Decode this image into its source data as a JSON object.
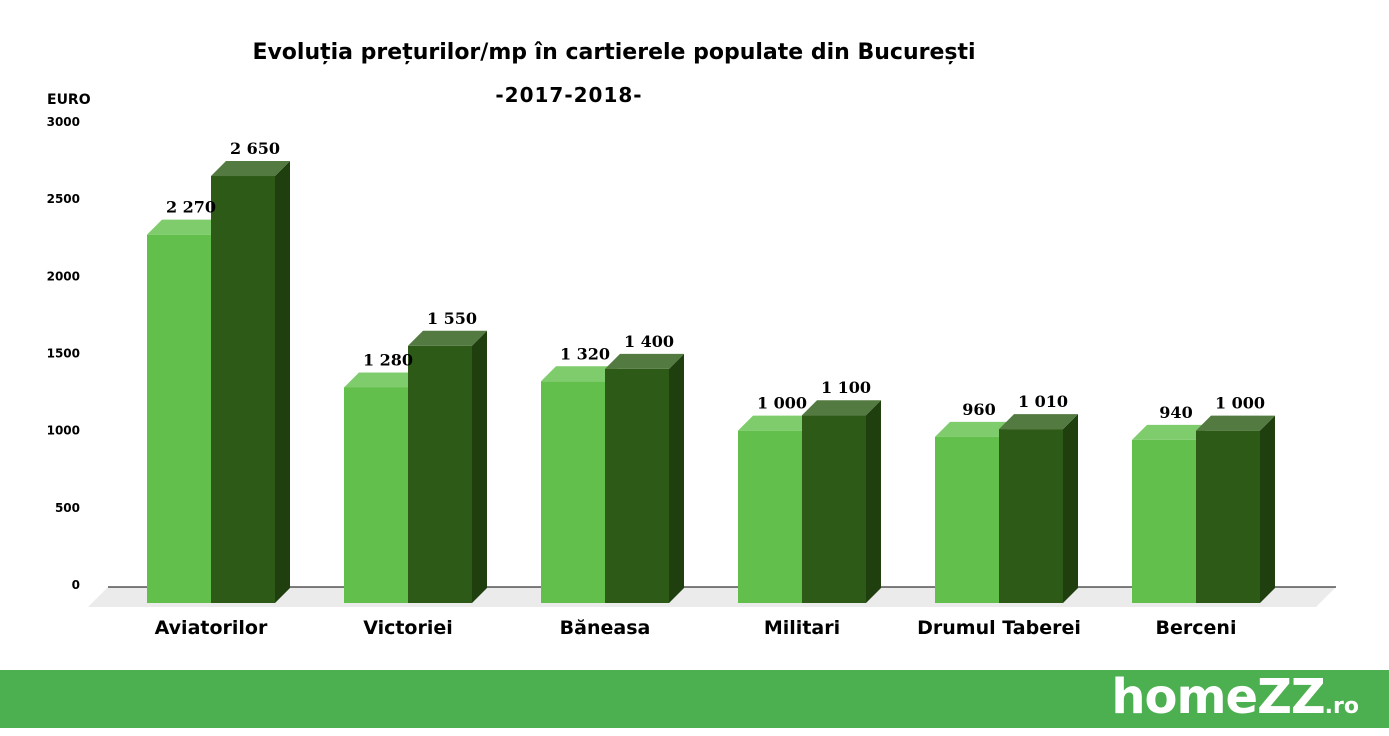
{
  "chart_data": {
    "type": "bar",
    "title": "Evoluția prețurilor/mp în cartierele populate din București",
    "subtitle": "-2017-2018-",
    "ylabel": "EURO",
    "ylim": [
      0,
      3000
    ],
    "yticks": [
      0,
      500,
      1000,
      1500,
      2000,
      2500,
      3000
    ],
    "categories": [
      "Aviatorilor",
      "Victoriei",
      "Băneasa",
      "Militari",
      "Drumul Taberei",
      "Berceni"
    ],
    "series": [
      {
        "values": [
          2270,
          1280,
          1320,
          1000,
          960,
          940
        ],
        "labels": [
          "2 270",
          "1 280",
          "1 320",
          "1 000",
          "960",
          "940"
        ],
        "color": "#63bf4c"
      },
      {
        "values": [
          2650,
          1550,
          1400,
          1100,
          1010,
          1000
        ],
        "labels": [
          "2 650",
          "1 550",
          "1 400",
          "1 100",
          "1 010",
          "1 000"
        ],
        "color": "#2d5a17"
      }
    ],
    "grid": false,
    "legend": "none"
  },
  "footer": {
    "brand": "homeZZ",
    "brand_suffix": ".ro",
    "color": "#4caf50"
  }
}
